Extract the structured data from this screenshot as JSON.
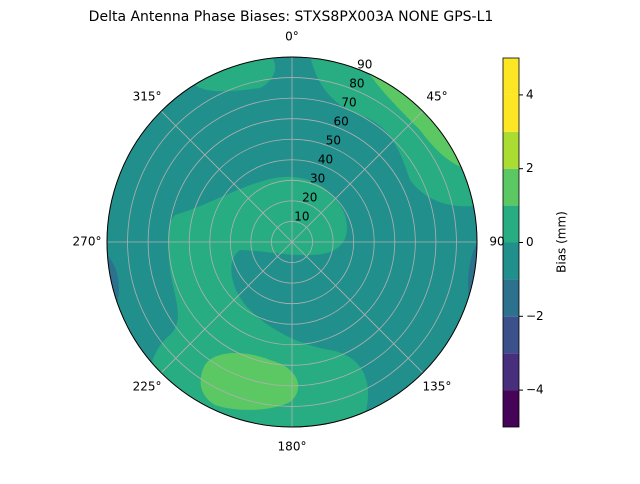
{
  "chart_data": {
    "type": "polar-contour",
    "title": "Delta Antenna Phase Biases: STXS8PX003A     NONE GPS-L1",
    "colorbar_label": "Bias (mm)",
    "thetaticks": [
      {
        "value": 0,
        "label": "0°"
      },
      {
        "value": 45,
        "label": "45°"
      },
      {
        "value": 90,
        "label": "90"
      },
      {
        "value": 135,
        "label": "135°"
      },
      {
        "value": 180,
        "label": "180°"
      },
      {
        "value": 225,
        "label": "225°"
      },
      {
        "value": 270,
        "label": "270°"
      },
      {
        "value": 315,
        "label": "315°"
      }
    ],
    "rlim": [
      0,
      90
    ],
    "rticks": [
      10,
      20,
      30,
      40,
      50,
      60,
      70,
      80,
      90
    ],
    "clim": [
      -5,
      5
    ],
    "levels": [
      -5,
      -4,
      -3,
      -2,
      -1,
      0,
      1,
      2,
      3,
      4,
      5
    ],
    "colors": [
      "#450457",
      "#472f7d",
      "#3b518b",
      "#2c718e",
      "#21908d",
      "#27ad81",
      "#5cc863",
      "#aadc32",
      "#fde725",
      "#fde725"
    ],
    "cticks": [
      {
        "value": -4,
        "label": "−4"
      },
      {
        "value": -2,
        "label": "−2"
      },
      0,
      2,
      4
    ],
    "grid": true
  }
}
